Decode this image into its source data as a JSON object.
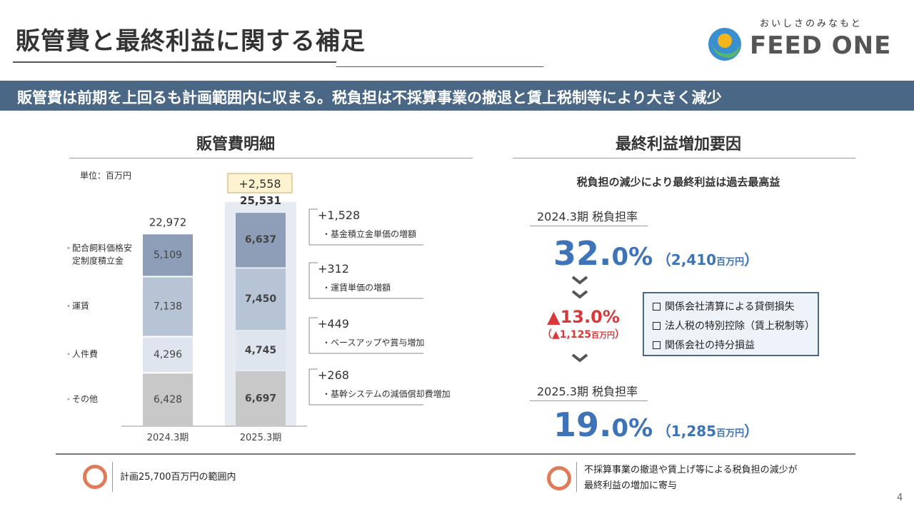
{
  "header": {
    "title": "販管費と最終利益に関する補足",
    "logo_tagline": "おいしさのみなもと",
    "logo_text": "FEED ONE"
  },
  "banner": {
    "text": "販管費は前期を上回るも計画範囲内に収まる。税負担は不採算事業の撤退と賃上税制等により大きく減少"
  },
  "left_section": {
    "title": "販管費明細",
    "unit_label": "単位：百万円"
  },
  "chart_data": {
    "type": "bar",
    "stacked": true,
    "title": "販管費明細",
    "unit": "単位：百万円",
    "categories": [
      "2024.3期",
      "2025.3期"
    ],
    "series": [
      {
        "name": "その他",
        "values": [
          6428,
          6697
        ],
        "color": "#c8c8c8"
      },
      {
        "name": "人件費",
        "values": [
          4296,
          4745
        ],
        "color": "#dfe5ee"
      },
      {
        "name": "運賃",
        "values": [
          7138,
          7450
        ],
        "color": "#b6c4d6"
      },
      {
        "name": "配合飼料価格安定制度積立金",
        "values": [
          5109,
          6637
        ],
        "color": "#8e9eb8"
      }
    ],
    "series_labels": [
      [
        "その他"
      ],
      [
        "人件費"
      ],
      [
        "運賃"
      ],
      [
        "配合飼料価格安",
        "定制度積立金"
      ]
    ],
    "series_label_lines": [
      [
        "その他"
      ],
      [
        "人件費"
      ],
      [
        "運賃"
      ],
      [
        "配合飼料価格安",
        "定制度積立金"
      ]
    ],
    "totals": [
      22972,
      25531
    ],
    "total_labels": [
      "22,972",
      "25,531"
    ],
    "increase_label": "+2,558",
    "value_labels": [
      [
        "6,428",
        "4,296",
        "7,138",
        "5,109"
      ],
      [
        "6,697",
        "4,745",
        "7,450",
        "6,637"
      ]
    ],
    "change_annotations": [
      {
        "value": "+1,528",
        "note": "・基金積立金単価の増額"
      },
      {
        "value": "+312",
        "note": "・運賃単価の増額"
      },
      {
        "value": "+449",
        "note": "・ベースアップや賞与増加"
      },
      {
        "value": "+268",
        "note": "・基幹システムの減価償却費増加"
      }
    ],
    "ylim": [
      0,
      28000
    ],
    "colors": {
      "highlight_bg": "#e6ebf2",
      "increase_box_bg": "#fdf3d0",
      "increase_box_border": "#c8a860"
    }
  },
  "right_section": {
    "title": "最終利益増加要因",
    "subtitle": "税負担の減少により最終利益は過去最高益",
    "prev_label": "2024.3期 税負担率",
    "prev_rate_num": "32.",
    "prev_rate_frac": "0%",
    "prev_amount": "（2,410",
    "prev_amount_unit": "百万円",
    "prev_amount_close": "）",
    "delta_main": "▲13.0%",
    "delta_sub": "（▲1,125",
    "delta_sub_unit": "百万円",
    "delta_sub_close": "）",
    "curr_label": "2025.3期 税負担率",
    "curr_rate_num": "19.",
    "curr_rate_frac": "0%",
    "curr_amount": "（1,285",
    "curr_amount_unit": "百万円",
    "curr_amount_close": "）",
    "factors": [
      "関係会社清算による貸倒損失",
      "法人税の特別控除（賃上税制等）",
      "関係会社の持分損益"
    ],
    "colors": {
      "rate": "#3e73b8",
      "delta": "#d9383a"
    }
  },
  "bottom": {
    "left_text": "計画25,700百万円の範囲内",
    "right_text_line1": "不採算事業の撤退や賃上げ等による税負担の減少が",
    "right_text_line2": "最終利益の増加に寄与",
    "page_number": "4"
  }
}
